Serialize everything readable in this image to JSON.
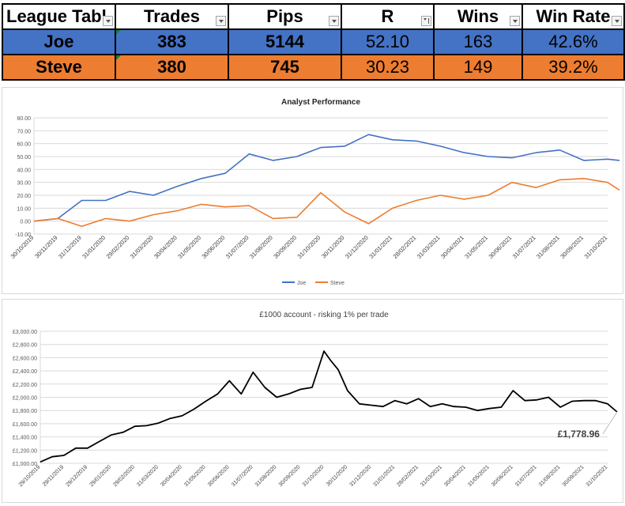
{
  "table": {
    "headers": [
      "League Tabl",
      "Trades",
      "Pips",
      "R",
      "Wins",
      "Win Rate"
    ],
    "rows": [
      {
        "name": "Joe",
        "trades": "383",
        "pips": "5144",
        "r": "52.10",
        "wins": "163",
        "win_rate": "42.6%"
      },
      {
        "name": "Steve",
        "trades": "380",
        "pips": "745",
        "r": "30.23",
        "wins": "149",
        "win_rate": "39.2%"
      }
    ],
    "colors": {
      "joe": "#4472c4",
      "steve": "#ed7d31"
    }
  },
  "chart_data": [
    {
      "type": "line",
      "title": "Analyst Performance",
      "ylim": [
        -10,
        80
      ],
      "yticks": [
        "-10.00",
        "0.00",
        "10.00",
        "20.00",
        "30.00",
        "40.00",
        "50.00",
        "60.00",
        "70.00",
        "80.00"
      ],
      "x_ticks": [
        "30/10/2019",
        "30/11/2019",
        "31/12/2019",
        "31/01/2020",
        "29/02/2020",
        "31/03/2020",
        "30/04/2020",
        "31/05/2020",
        "30/06/2020",
        "31/07/2020",
        "31/08/2020",
        "30/09/2020",
        "31/10/2020",
        "30/11/2020",
        "31/12/2020",
        "31/01/2021",
        "28/02/2021",
        "31/03/2021",
        "30/04/2021",
        "31/05/2021",
        "30/06/2021",
        "31/07/2021",
        "31/08/2021",
        "30/09/2021",
        "31/10/2021"
      ],
      "grid": true,
      "legend": "bottom",
      "x": [
        0,
        1,
        2,
        3,
        4,
        5,
        6,
        7,
        8,
        9,
        10,
        11,
        12,
        13,
        14,
        15,
        16,
        17,
        18,
        19,
        20,
        21,
        22,
        23,
        24,
        24.5
      ],
      "series": [
        {
          "name": "Joe",
          "color": "#4472c4",
          "values": [
            0,
            2,
            16,
            16,
            23,
            20,
            27,
            33,
            37,
            52,
            47,
            50,
            57,
            58,
            67,
            63,
            62,
            58,
            53,
            50,
            49,
            53,
            55,
            47,
            48,
            47
          ]
        },
        {
          "name": "Steve",
          "color": "#ed7d31",
          "values": [
            0,
            2,
            -4,
            2,
            0,
            5,
            8,
            13,
            11,
            12,
            2,
            3,
            22,
            7,
            -2,
            10,
            16,
            20,
            17,
            20,
            30,
            26,
            32,
            33,
            30,
            24
          ]
        }
      ]
    },
    {
      "type": "line",
      "title": "£1000 account - risking 1% per trade",
      "ylim": [
        1000,
        3000
      ],
      "yticks": [
        "£1,000.00",
        "£1,200.00",
        "£1,400.00",
        "£1,600.00",
        "£1,800.00",
        "£2,000.00",
        "£2,200.00",
        "£2,400.00",
        "£2,600.00",
        "£2,800.00",
        "£3,000.00"
      ],
      "x_ticks": [
        "29/10/2019",
        "29/11/2019",
        "29/12/2019",
        "29/01/2020",
        "29/02/2020",
        "31/03/2020",
        "30/04/2020",
        "31/05/2020",
        "30/06/2020",
        "31/07/2020",
        "31/08/2020",
        "30/09/2020",
        "31/10/2020",
        "30/11/2020",
        "31/12/2020",
        "31/01/2021",
        "28/02/2021",
        "31/03/2021",
        "30/04/2021",
        "31/05/2021",
        "30/06/2021",
        "31/07/2021",
        "31/08/2021",
        "30/09/2021",
        "31/10/2021"
      ],
      "grid": true,
      "series": [
        {
          "name": "",
          "color": "#000000",
          "x": [
            0,
            0.5,
            1,
            1.5,
            2,
            2.5,
            3,
            3.5,
            4,
            4.5,
            5,
            5.5,
            6,
            6.5,
            7,
            7.5,
            8,
            8.5,
            9,
            9.5,
            10,
            10.5,
            11,
            11.5,
            12,
            12.3,
            12.6,
            13,
            13.5,
            14,
            14.5,
            15,
            15.5,
            16,
            16.5,
            17,
            17.5,
            18,
            18.5,
            19,
            19.5,
            20,
            20.5,
            21,
            21.5,
            22,
            22.5,
            23,
            23.5,
            24,
            24.4
          ],
          "values": [
            1020,
            1100,
            1120,
            1230,
            1230,
            1330,
            1430,
            1470,
            1560,
            1570,
            1610,
            1680,
            1720,
            1820,
            1940,
            2050,
            2250,
            2050,
            2380,
            2150,
            2000,
            2050,
            2120,
            2150,
            2700,
            2550,
            2420,
            2100,
            1900,
            1880,
            1860,
            1950,
            1900,
            1980,
            1860,
            1900,
            1860,
            1850,
            1800,
            1830,
            1850,
            2100,
            1950,
            1960,
            2000,
            1850,
            1940,
            1950,
            1950,
            1900,
            1779
          ]
        }
      ],
      "annotation": "£1,778.96"
    }
  ]
}
